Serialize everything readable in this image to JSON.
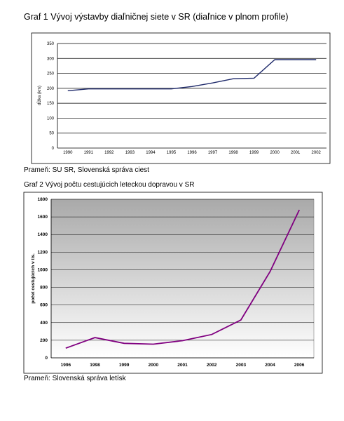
{
  "charts": [
    {
      "title": "Graf 1 Vývoj výstavby diaľničnej siete v SR (diaľnice v plnom profile)",
      "source": "Prameň: SU SR, Slovenská správa ciest"
    },
    {
      "title": "Graf 2 Vývoj počtu cestujúcich leteckou dopravou v SR",
      "source": "Prameň: Slovenská správa letísk"
    }
  ],
  "chart_data": [
    {
      "type": "line",
      "title": "Graf 1 Vývoj výstavby diaľničnej siete v SR (diaľnice v plnom profile)",
      "xlabel": "",
      "ylabel": "dĺžka (km)",
      "categories": [
        "1990",
        "1991",
        "1992",
        "1993",
        "1994",
        "1995",
        "1996",
        "1997",
        "1998",
        "1999",
        "2000",
        "2001",
        "2002"
      ],
      "values": [
        192,
        198,
        198,
        198,
        198,
        198,
        206,
        218,
        232,
        234,
        296,
        296,
        296
      ],
      "ylim": [
        0,
        350
      ],
      "yticks": [
        "0",
        "50",
        "100",
        "150",
        "200",
        "250",
        "300",
        "350"
      ],
      "grid": true,
      "color": "#1f2a6b"
    },
    {
      "type": "line",
      "title": "Graf 2 Vývoj počtu cestujúcich leteckou dopravou v SR",
      "xlabel": "",
      "ylabel": "počet cestujúcich v tis.",
      "categories": [
        "1996",
        "1998",
        "1999",
        "2000",
        "2001",
        "2002",
        "2003",
        "2004",
        "2006"
      ],
      "values": [
        110,
        230,
        165,
        155,
        195,
        265,
        430,
        980,
        1680
      ],
      "ylim": [
        0,
        1800
      ],
      "yticks": [
        "0",
        "200",
        "400",
        "600",
        "800",
        "1000",
        "1200",
        "1400",
        "1600",
        "1800"
      ],
      "grid": true,
      "color": "#800080",
      "background": "gradient-grey"
    }
  ]
}
